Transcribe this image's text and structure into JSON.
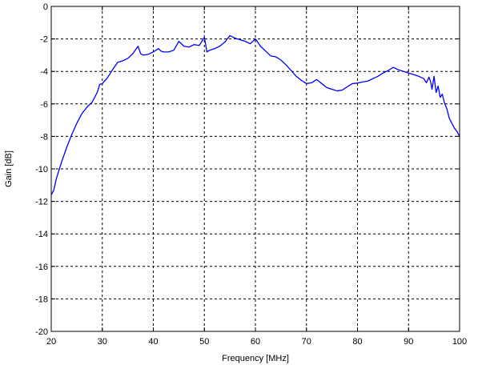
{
  "chart_data": {
    "type": "line",
    "title": "",
    "xlabel": "Frequency [MHz]",
    "ylabel": "Gain [dB]",
    "xlim": [
      20,
      100
    ],
    "ylim": [
      -20,
      0
    ],
    "xticks": [
      20,
      30,
      40,
      50,
      60,
      70,
      80,
      90,
      100
    ],
    "yticks": [
      0,
      -2,
      -4,
      -6,
      -8,
      -10,
      -12,
      -14,
      -16,
      -18,
      -20
    ],
    "xtick_labels": [
      "20",
      "30",
      "40",
      "50",
      "60",
      "70",
      "80",
      "90",
      "100"
    ],
    "ytick_labels": [
      "0",
      "-2",
      "-4",
      "-6",
      "-8",
      "-10",
      "-12",
      "-14",
      "-16",
      "-18",
      "-20"
    ],
    "grid": true,
    "grid_style": "dashed",
    "line_color": "#0000ff",
    "axis_color": "#000000",
    "series": [
      {
        "x": [
          20,
          20.5,
          21,
          22,
          23,
          24,
          25,
          26,
          27,
          28,
          29,
          29.5,
          30,
          31,
          32,
          33,
          34,
          35,
          36,
          37,
          37.5,
          38,
          39,
          40,
          41,
          41.5,
          42,
          43,
          44,
          45,
          46,
          47,
          48,
          49,
          50,
          50.5,
          51,
          52,
          53,
          54,
          55,
          56,
          57,
          58,
          59,
          60,
          61,
          62,
          63,
          64,
          65,
          66,
          67,
          68,
          69,
          70,
          71,
          72,
          73,
          74,
          75,
          76,
          77,
          78,
          79,
          80,
          81,
          82,
          83,
          84,
          85,
          86,
          87,
          88,
          89,
          90,
          91,
          92,
          93,
          93.5,
          94,
          94.3,
          94.6,
          95,
          95.4,
          95.8,
          96.2,
          96.6,
          97,
          97.5,
          98,
          98.5,
          99,
          99.5,
          100
        ],
        "y": [
          -11.6,
          -11.3,
          -10.6,
          -9.6,
          -8.7,
          -7.9,
          -7.2,
          -6.6,
          -6.2,
          -5.9,
          -5.3,
          -4.8,
          -4.75,
          -4.4,
          -3.9,
          -3.45,
          -3.35,
          -3.2,
          -2.9,
          -2.45,
          -2.9,
          -3.0,
          -2.95,
          -2.8,
          -2.6,
          -2.75,
          -2.8,
          -2.8,
          -2.7,
          -2.15,
          -2.45,
          -2.5,
          -2.35,
          -2.4,
          -1.9,
          -2.8,
          -2.7,
          -2.6,
          -2.45,
          -2.2,
          -1.8,
          -1.95,
          -2.05,
          -2.15,
          -2.3,
          -2.0,
          -2.45,
          -2.75,
          -3.05,
          -3.1,
          -3.3,
          -3.6,
          -3.95,
          -4.3,
          -4.55,
          -4.75,
          -4.7,
          -4.5,
          -4.75,
          -5.0,
          -5.1,
          -5.2,
          -5.15,
          -4.95,
          -4.75,
          -4.72,
          -4.65,
          -4.6,
          -4.45,
          -4.3,
          -4.1,
          -3.95,
          -3.75,
          -3.9,
          -4.0,
          -4.1,
          -4.2,
          -4.3,
          -4.45,
          -4.7,
          -4.35,
          -4.6,
          -5.1,
          -4.3,
          -5.3,
          -4.9,
          -5.6,
          -5.4,
          -5.9,
          -6.3,
          -6.9,
          -7.2,
          -7.5,
          -7.7,
          -8.0
        ]
      }
    ]
  }
}
